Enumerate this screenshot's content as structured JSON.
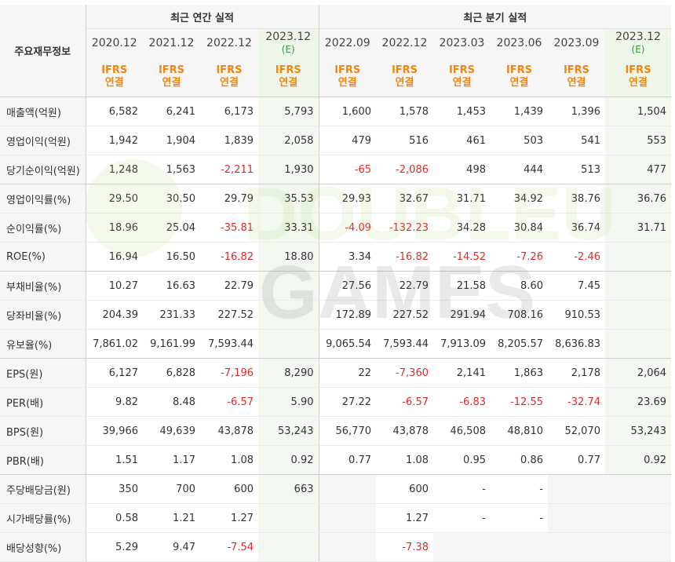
{
  "header": {
    "row_label": "주요재무정보",
    "annual_group": "최근 연간 실적",
    "quarter_group": "최근 분기 실적",
    "annual_periods": [
      {
        "period": "2020.12",
        "est": "",
        "ifrs": "IFRS",
        "basis": "연결"
      },
      {
        "period": "2021.12",
        "est": "",
        "ifrs": "IFRS",
        "basis": "연결"
      },
      {
        "period": "2022.12",
        "est": "",
        "ifrs": "IFRS",
        "basis": "연결"
      },
      {
        "period": "2023.12",
        "est": "(E)",
        "ifrs": "IFRS",
        "basis": "연결"
      }
    ],
    "quarter_periods": [
      {
        "period": "2022.09",
        "est": "",
        "ifrs": "IFRS",
        "basis": "연결"
      },
      {
        "period": "2022.12",
        "est": "",
        "ifrs": "IFRS",
        "basis": "연결"
      },
      {
        "period": "2023.03",
        "est": "",
        "ifrs": "IFRS",
        "basis": "연결"
      },
      {
        "period": "2023.06",
        "est": "",
        "ifrs": "IFRS",
        "basis": "연결"
      },
      {
        "period": "2023.09",
        "est": "",
        "ifrs": "IFRS",
        "basis": "연결"
      },
      {
        "period": "2023.12",
        "est": "(E)",
        "ifrs": "IFRS",
        "basis": "연결"
      }
    ]
  },
  "watermark": "DOUBLEU GAMES",
  "colors": {
    "negative": "#e02a2a",
    "ifrs": "#f2850d",
    "estimate": "#2e9e3e",
    "estimate_bg": "#f2f8ef"
  },
  "rows": [
    {
      "label": "매출액(억원)",
      "values": [
        "6,582",
        "6,241",
        "6,173",
        "5,793",
        "1,600",
        "1,578",
        "1,453",
        "1,439",
        "1,396",
        "1,504"
      ]
    },
    {
      "label": "영업이익(억원)",
      "values": [
        "1,942",
        "1,904",
        "1,839",
        "2,058",
        "479",
        "516",
        "461",
        "503",
        "541",
        "553"
      ]
    },
    {
      "label": "당기순이익(억원)",
      "values": [
        "1,248",
        "1,563",
        "-2,211",
        "1,930",
        "-65",
        "-2,086",
        "498",
        "444",
        "513",
        "477"
      ]
    },
    {
      "label": "영업이익률(%)",
      "values": [
        "29.50",
        "30.50",
        "29.79",
        "35.53",
        "29.93",
        "32.67",
        "31.71",
        "34.92",
        "38.76",
        "36.76"
      ]
    },
    {
      "label": "순이익률(%)",
      "values": [
        "18.96",
        "25.04",
        "-35.81",
        "33.31",
        "-4.09",
        "-132.23",
        "34.28",
        "30.84",
        "36.74",
        "31.71"
      ]
    },
    {
      "label": "ROE(%)",
      "values": [
        "16.94",
        "16.50",
        "-16.82",
        "18.80",
        "3.34",
        "-16.82",
        "-14.52",
        "-7.26",
        "-2.46",
        ""
      ]
    },
    {
      "label": "부채비율(%)",
      "values": [
        "10.27",
        "16.63",
        "22.79",
        "",
        "27.56",
        "22.79",
        "21.58",
        "8.60",
        "7.45",
        ""
      ]
    },
    {
      "label": "당좌비율(%)",
      "values": [
        "204.39",
        "231.33",
        "227.52",
        "",
        "172.89",
        "227.52",
        "291.94",
        "708.16",
        "910.53",
        ""
      ]
    },
    {
      "label": "유보율(%)",
      "values": [
        "7,861.02",
        "9,161.99",
        "7,593.44",
        "",
        "9,065.54",
        "7,593.44",
        "7,913.09",
        "8,205.57",
        "8,636.83",
        ""
      ]
    },
    {
      "label": "EPS(원)",
      "values": [
        "6,127",
        "6,828",
        "-7,196",
        "8,290",
        "22",
        "-7,360",
        "2,141",
        "1,863",
        "2,178",
        "2,064"
      ]
    },
    {
      "label": "PER(배)",
      "values": [
        "9.82",
        "8.48",
        "-6.57",
        "5.90",
        "27.22",
        "-6.57",
        "-6.83",
        "-12.55",
        "-32.74",
        "23.69"
      ]
    },
    {
      "label": "BPS(원)",
      "values": [
        "39,966",
        "49,639",
        "43,878",
        "53,243",
        "56,770",
        "43,878",
        "46,508",
        "48,810",
        "52,070",
        "53,243"
      ]
    },
    {
      "label": "PBR(배)",
      "values": [
        "1.51",
        "1.17",
        "1.08",
        "0.92",
        "0.77",
        "1.08",
        "0.95",
        "0.86",
        "0.77",
        "0.92"
      ]
    },
    {
      "label": "주당배당금(원)",
      "values": [
        "350",
        "700",
        "600",
        "663",
        "",
        "600",
        "-",
        "-",
        "",
        ""
      ]
    },
    {
      "label": "시가배당률(%)",
      "values": [
        "0.58",
        "1.21",
        "1.27",
        "",
        "",
        "1.27",
        "-",
        "-",
        "",
        ""
      ]
    },
    {
      "label": "배당성향(%)",
      "values": [
        "5.29",
        "9.47",
        "-7.54",
        "",
        "",
        "-7.38",
        "",
        "",
        "",
        ""
      ]
    }
  ]
}
